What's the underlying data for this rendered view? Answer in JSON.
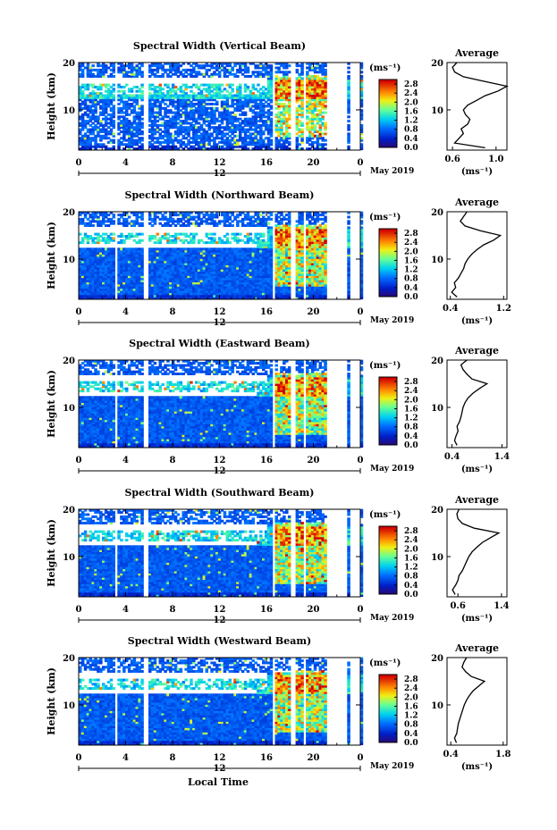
{
  "figure": {
    "xlabel": "Local Time",
    "date_label": "May 2019",
    "day_label": "12",
    "ylabel": "Height (km)",
    "unit_label": "(ms⁻¹)",
    "average_title": "Average"
  },
  "chart_data": [
    {
      "type": "heatmap",
      "title": "Spectral Width (Vertical Beam)",
      "xlabel": "Local Time",
      "ylabel": "Height (km)",
      "xlim": [
        0,
        24
      ],
      "ylim": [
        1.5,
        20
      ],
      "xticks": [
        "0",
        "4",
        "8",
        "12",
        "16",
        "20",
        "0"
      ],
      "yticks": [
        "10",
        "20"
      ],
      "colorbar": {
        "label": "(ms⁻¹)",
        "range": [
          0.0,
          3.0
        ],
        "ticks": [
          "0.0",
          "0.4",
          "0.8",
          "1.2",
          "1.6",
          "2.0",
          "2.4",
          "2.8"
        ]
      },
      "data_gaps_hours": [
        [
          3.0,
          3.3
        ],
        [
          5.6,
          5.9
        ],
        [
          16.5,
          16.7
        ],
        [
          17.5,
          17.7
        ],
        [
          18.1,
          18.4
        ],
        [
          19.2,
          19.4
        ],
        [
          21.2,
          22.8
        ],
        [
          23.2,
          24.0
        ]
      ],
      "average_profile": {
        "title": "Average",
        "xlabel": "(ms⁻¹)",
        "ylabel": "Height (km)",
        "xlim": [
          0.55,
          1.1
        ],
        "xticks": [
          "0.6",
          "1.0"
        ],
        "yticks": [
          "10",
          "20"
        ],
        "height_km": [
          2,
          3,
          4,
          5,
          6,
          7,
          8,
          9,
          10,
          11,
          12,
          13,
          14,
          15,
          16,
          17,
          18,
          19,
          20
        ],
        "value_ms": [
          0.9,
          0.62,
          0.66,
          0.7,
          0.68,
          0.74,
          0.76,
          0.72,
          0.7,
          0.74,
          0.82,
          0.9,
          1.02,
          1.1,
          0.9,
          0.7,
          0.62,
          0.6,
          0.64
        ]
      }
    },
    {
      "type": "heatmap",
      "title": "Spectral Width (Northward Beam)",
      "xlabel": "Local Time",
      "ylabel": "Height (km)",
      "xlim": [
        0,
        24
      ],
      "ylim": [
        1.5,
        20
      ],
      "xticks": [
        "0",
        "4",
        "8",
        "12",
        "16",
        "20",
        "0"
      ],
      "yticks": [
        "10",
        "20"
      ],
      "colorbar": {
        "label": "(ms⁻¹)",
        "range": [
          0.0,
          3.0
        ],
        "ticks": [
          "0.0",
          "0.4",
          "0.8",
          "1.2",
          "1.6",
          "2.0",
          "2.4",
          "2.8"
        ]
      },
      "data_gaps_hours": [
        [
          3.0,
          3.3
        ],
        [
          5.6,
          5.9
        ],
        [
          16.5,
          16.7
        ],
        [
          17.5,
          17.7
        ],
        [
          18.1,
          18.4
        ],
        [
          19.2,
          19.4
        ],
        [
          21.2,
          22.8
        ],
        [
          23.2,
          24.0
        ]
      ],
      "average_profile": {
        "title": "Average",
        "xlabel": "(ms⁻¹)",
        "ylabel": "Height (km)",
        "xlim": [
          0.35,
          1.25
        ],
        "xticks": [
          "0.4",
          "1.2"
        ],
        "yticks": [
          "10",
          "20"
        ],
        "height_km": [
          2,
          3,
          4,
          5,
          6,
          7,
          8,
          9,
          10,
          11,
          12,
          13,
          14,
          15,
          16,
          17,
          18,
          19,
          20
        ],
        "value_ms": [
          0.5,
          0.42,
          0.48,
          0.46,
          0.52,
          0.56,
          0.6,
          0.62,
          0.66,
          0.72,
          0.8,
          0.9,
          1.05,
          1.15,
          0.85,
          0.62,
          0.55,
          0.6,
          0.65
        ]
      }
    },
    {
      "type": "heatmap",
      "title": "Spectral Width (Eastward Beam)",
      "xlabel": "Local Time",
      "ylabel": "Height (km)",
      "xlim": [
        0,
        24
      ],
      "ylim": [
        1.5,
        20
      ],
      "xticks": [
        "0",
        "4",
        "8",
        "12",
        "16",
        "20",
        "0"
      ],
      "yticks": [
        "10",
        "20"
      ],
      "colorbar": {
        "label": "(ms⁻¹)",
        "range": [
          0.0,
          3.0
        ],
        "ticks": [
          "0.0",
          "0.4",
          "0.8",
          "1.2",
          "1.6",
          "2.0",
          "2.4",
          "2.8"
        ]
      },
      "data_gaps_hours": [
        [
          3.0,
          3.3
        ],
        [
          5.6,
          5.9
        ],
        [
          16.5,
          16.7
        ],
        [
          17.5,
          17.7
        ],
        [
          18.1,
          18.4
        ],
        [
          19.2,
          19.4
        ],
        [
          21.2,
          22.8
        ],
        [
          23.2,
          24.0
        ]
      ],
      "average_profile": {
        "title": "Average",
        "xlabel": "(ms⁻¹)",
        "ylabel": "Height (km)",
        "xlim": [
          0.3,
          1.5
        ],
        "xticks": [
          "0.4",
          "1.4"
        ],
        "yticks": [
          "10",
          "20"
        ],
        "height_km": [
          2,
          3,
          4,
          5,
          6,
          7,
          8,
          9,
          10,
          11,
          12,
          13,
          14,
          15,
          16,
          17,
          18,
          19,
          20
        ],
        "value_ms": [
          0.5,
          0.45,
          0.48,
          0.52,
          0.5,
          0.55,
          0.58,
          0.6,
          0.62,
          0.66,
          0.72,
          0.82,
          0.95,
          1.1,
          0.8,
          0.7,
          0.62,
          0.58,
          0.7
        ]
      }
    },
    {
      "type": "heatmap",
      "title": "Spectral Width (Southward Beam)",
      "xlabel": "Local Time",
      "ylabel": "Height (km)",
      "xlim": [
        0,
        24
      ],
      "ylim": [
        1.5,
        20
      ],
      "xticks": [
        "0",
        "4",
        "8",
        "12",
        "16",
        "20",
        "0"
      ],
      "yticks": [
        "10",
        "20"
      ],
      "colorbar": {
        "label": "(ms⁻¹)",
        "range": [
          0.0,
          3.0
        ],
        "ticks": [
          "0.0",
          "0.4",
          "0.8",
          "1.2",
          "1.6",
          "2.0",
          "2.4",
          "2.8"
        ]
      },
      "data_gaps_hours": [
        [
          3.0,
          3.3
        ],
        [
          5.6,
          5.9
        ],
        [
          16.5,
          16.7
        ],
        [
          17.5,
          17.7
        ],
        [
          18.1,
          18.4
        ],
        [
          19.2,
          19.4
        ],
        [
          21.2,
          22.8
        ],
        [
          23.2,
          24.0
        ]
      ],
      "average_profile": {
        "title": "Average",
        "xlabel": "(ms⁻¹)",
        "ylabel": "Height (km)",
        "xlim": [
          0.4,
          1.5
        ],
        "xticks": [
          "0.6",
          "1.4"
        ],
        "yticks": [
          "10",
          "20"
        ],
        "height_km": [
          2,
          3,
          4,
          5,
          6,
          7,
          8,
          9,
          10,
          11,
          12,
          13,
          14,
          15,
          16,
          17,
          18,
          19,
          20
        ],
        "value_ms": [
          0.55,
          0.5,
          0.56,
          0.6,
          0.62,
          0.68,
          0.72,
          0.76,
          0.8,
          0.86,
          0.95,
          1.05,
          1.2,
          1.35,
          0.9,
          0.68,
          0.6,
          0.58,
          0.62
        ]
      }
    },
    {
      "type": "heatmap",
      "title": "Spectral Width (Westward Beam)",
      "xlabel": "Local Time",
      "ylabel": "Height (km)",
      "xlim": [
        0,
        24
      ],
      "ylim": [
        1.5,
        20
      ],
      "xticks": [
        "0",
        "4",
        "8",
        "12",
        "16",
        "20",
        "0"
      ],
      "yticks": [
        "10",
        "20"
      ],
      "colorbar": {
        "label": "(ms⁻¹)",
        "range": [
          0.0,
          3.0
        ],
        "ticks": [
          "0.0",
          "0.4",
          "0.8",
          "1.2",
          "1.6",
          "2.0",
          "2.4",
          "2.8"
        ]
      },
      "data_gaps_hours": [
        [
          3.0,
          3.3
        ],
        [
          5.6,
          5.9
        ],
        [
          16.5,
          16.7
        ],
        [
          17.5,
          17.7
        ],
        [
          18.1,
          18.4
        ],
        [
          19.2,
          19.4
        ],
        [
          21.2,
          22.8
        ],
        [
          23.2,
          24.0
        ]
      ],
      "average_profile": {
        "title": "Average",
        "xlabel": "(ms⁻¹)",
        "ylabel": "Height (km)",
        "xlim": [
          0.3,
          1.9
        ],
        "xticks": [
          "0.4",
          "1.8"
        ],
        "yticks": [
          "10",
          "20"
        ],
        "height_km": [
          2,
          3,
          4,
          5,
          6,
          7,
          8,
          9,
          10,
          11,
          12,
          13,
          14,
          15,
          16,
          17,
          18,
          19,
          20
        ],
        "value_ms": [
          0.55,
          0.5,
          0.56,
          0.58,
          0.6,
          0.64,
          0.68,
          0.72,
          0.76,
          0.82,
          0.9,
          1.0,
          1.15,
          1.3,
          0.95,
          0.8,
          0.7,
          0.75,
          0.82
        ]
      }
    }
  ]
}
